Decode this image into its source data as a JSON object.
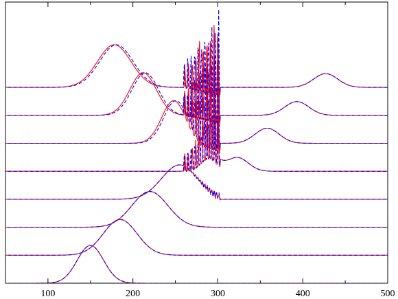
{
  "chart_data": {
    "type": "line",
    "title": "",
    "xlabel": "",
    "ylabel": "",
    "xlim": [
      50,
      500
    ],
    "xticks": [
      100,
      200,
      300,
      400,
      500
    ],
    "xtick_labels": [
      "100",
      "200",
      "300",
      "400",
      "500"
    ],
    "y_axis_ticks_labeled": false,
    "grid": false,
    "legend": "none",
    "colors": {
      "solid": "#ff0000",
      "dashed": "#0000ff",
      "overlap": "#5a1fb0"
    },
    "series_styles": [
      {
        "line": "solid",
        "color": "#ff0000"
      },
      {
        "line": "dashed",
        "color": "#0000ff"
      }
    ],
    "traces": [
      {
        "offset": 0,
        "peaks": [
          {
            "center": 150,
            "width": 22,
            "height": 55
          }
        ]
      },
      {
        "offset": 1,
        "peaks": [
          {
            "center": 185,
            "width": 28,
            "height": 52
          }
        ]
      },
      {
        "offset": 2,
        "peaks": [
          {
            "center": 220,
            "width": 30,
            "height": 52
          }
        ]
      },
      {
        "offset": 3,
        "peaks": [
          {
            "center": 255,
            "width": 30,
            "height": 50
          }
        ],
        "shock_at": 303,
        "oscillation": "small"
      },
      {
        "offset": 4,
        "peaks": [
          {
            "center": 290,
            "width": 15,
            "height": 25
          },
          {
            "center": 323,
            "width": 18,
            "height": 20
          }
        ],
        "shock_at": 303,
        "oscillation": "large"
      },
      {
        "offset": 5,
        "peaks": [
          {
            "center": 248,
            "width": 20,
            "height": 62
          },
          {
            "center": 358,
            "width": 20,
            "height": 22
          }
        ],
        "shock_at": 303,
        "oscillation": "large"
      },
      {
        "offset": 6,
        "peaks": [
          {
            "center": 212,
            "width": 22,
            "height": 62
          },
          {
            "center": 393,
            "width": 20,
            "height": 20
          }
        ],
        "shock_at": 303,
        "oscillation": "large"
      },
      {
        "offset": 7,
        "peaks": [
          {
            "center": 178,
            "width": 28,
            "height": 62
          },
          {
            "center": 427,
            "width": 20,
            "height": 20
          }
        ],
        "shock_at": 303,
        "oscillation": "large"
      }
    ]
  }
}
